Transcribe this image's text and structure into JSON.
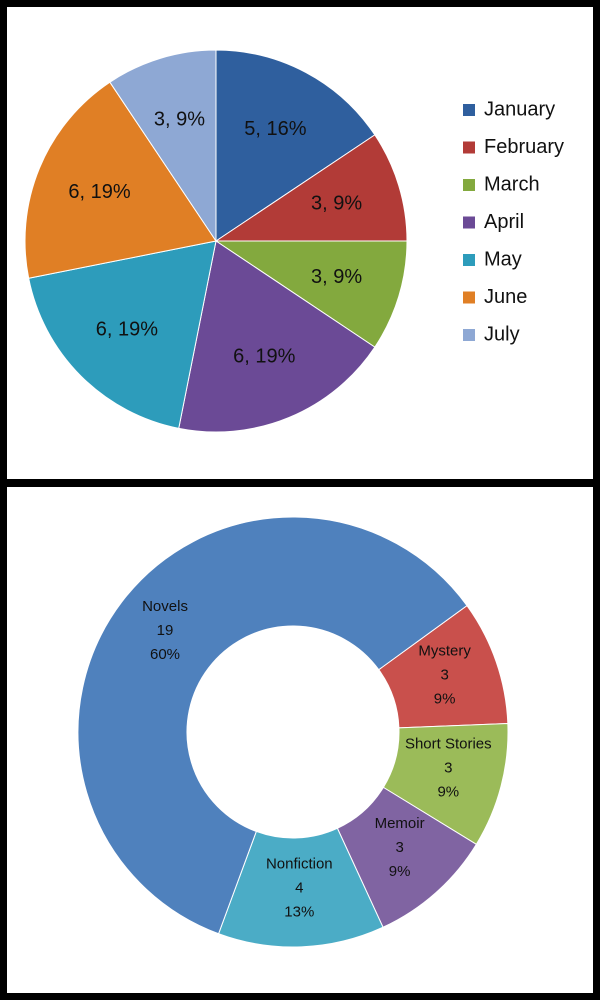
{
  "chart_data": [
    {
      "type": "pie",
      "categories": [
        "January",
        "February",
        "March",
        "April",
        "May",
        "June",
        "July"
      ],
      "values": [
        5,
        3,
        3,
        6,
        6,
        6,
        3
      ],
      "data_labels": [
        "5, 16%",
        "3, 9%",
        "3, 9%",
        "6, 19%",
        "6, 19%",
        "6, 19%",
        "3, 9%"
      ],
      "colors": [
        "#2f5f9e",
        "#b23b37",
        "#83a93e",
        "#6b4a96",
        "#2d9cbb",
        "#e07f25",
        "#8ea8d4"
      ],
      "legend": [
        "January",
        "February",
        "March",
        "April",
        "May",
        "June",
        "July"
      ],
      "legend_position": "right"
    },
    {
      "type": "pie",
      "style": "doughnut",
      "categories": [
        "Mystery",
        "Short Stories",
        "Memoir",
        "Nonfiction",
        "Novels"
      ],
      "values": [
        3,
        3,
        3,
        4,
        19
      ],
      "percent_labels": [
        "9%",
        "9%",
        "9%",
        "13%",
        "60%"
      ],
      "colors": [
        "#c9504c",
        "#9bbb59",
        "#8064a2",
        "#4bacc6",
        "#4f81bd"
      ],
      "legend": null
    }
  ]
}
